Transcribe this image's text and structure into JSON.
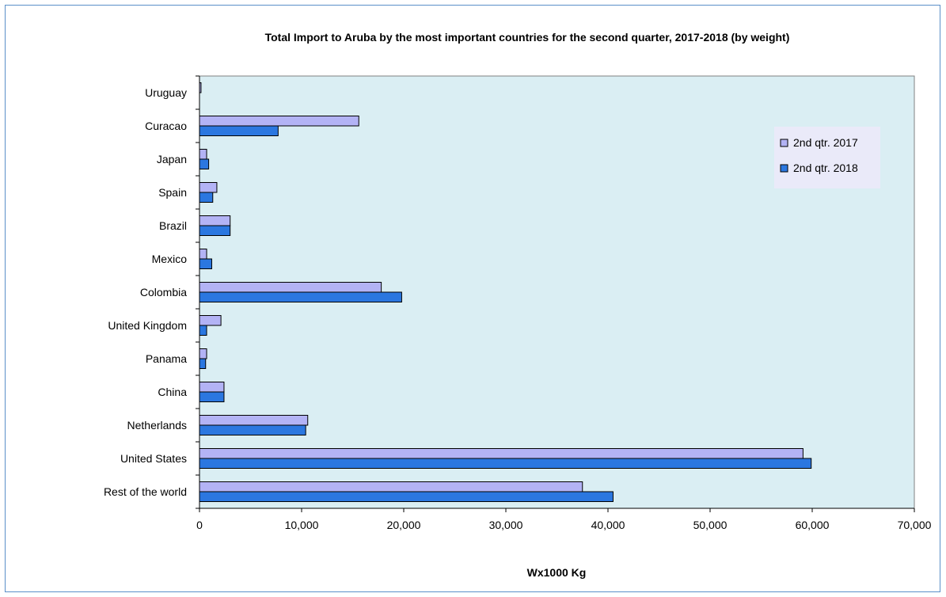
{
  "chart_data": {
    "type": "bar",
    "orientation": "horizontal",
    "title": "Total Import to Aruba  by the most important countries for the second quarter, 2017-2018 (by weight)",
    "xlabel": "Wx1000 Kg",
    "ylabel": "",
    "xlim": [
      0,
      70000
    ],
    "xticks": [
      0,
      10000,
      20000,
      30000,
      40000,
      50000,
      60000,
      70000
    ],
    "xtick_labels": [
      "0",
      "10,000",
      "20,000",
      "30,000",
      "40,000",
      "50,000",
      "60,000",
      "70,000"
    ],
    "categories": [
      "Uruguay",
      "Curacao",
      "Japan",
      "Spain",
      "Brazil",
      "Mexico",
      "Colombia",
      "United Kingdom",
      "Panama",
      "China",
      "Netherlands",
      "United States",
      "Rest of the world"
    ],
    "series": [
      {
        "name": "2nd qtr. 2017",
        "color": "#b3b3f5",
        "values": [
          150,
          15600,
          700,
          1700,
          3000,
          700,
          17800,
          2100,
          700,
          2400,
          10600,
          59100,
          37500
        ]
      },
      {
        "name": "2nd qtr. 2018",
        "color": "#2b77e0",
        "values": [
          0,
          7700,
          900,
          1300,
          3000,
          1200,
          19800,
          700,
          600,
          2400,
          10400,
          59900,
          40500
        ]
      }
    ],
    "legend_position": "top-right",
    "grid": false,
    "plot_background": "#daeef3"
  }
}
